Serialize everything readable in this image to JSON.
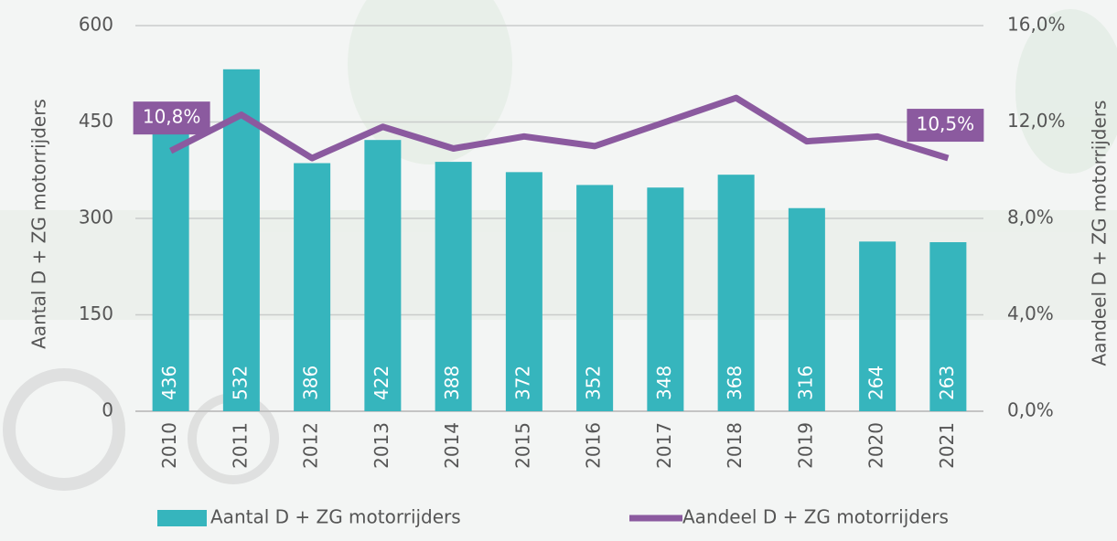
{
  "chart_data": {
    "type": "bar-line",
    "categories": [
      "2010",
      "2011",
      "2012",
      "2013",
      "2014",
      "2015",
      "2016",
      "2017",
      "2018",
      "2019",
      "2020",
      "2021"
    ],
    "y_label": "Aantal D + ZG motorrijders",
    "y2_label": "Aandeel D + ZG motorrijders",
    "ylim": [
      0,
      600
    ],
    "yticks": [
      0,
      150,
      300,
      450,
      600
    ],
    "y2lim": [
      0,
      16
    ],
    "y2ticks": [
      {
        "value": 0,
        "label": "0,0%"
      },
      {
        "value": 4,
        "label": "4,0%"
      },
      {
        "value": 8,
        "label": "8,0%"
      },
      {
        "value": 12,
        "label": "12,0%"
      },
      {
        "value": 16,
        "label": "16,0%"
      }
    ],
    "grid": true,
    "series": [
      {
        "name": "Aantal D + ZG motorrijders",
        "type": "bar",
        "color": "#36b5bd",
        "values": [
          436,
          532,
          386,
          422,
          388,
          372,
          352,
          348,
          368,
          316,
          264,
          263
        ]
      },
      {
        "name": "Aandeel D + ZG motorrijders",
        "type": "line",
        "axis": "y2",
        "color": "#8b5a9f",
        "values": [
          10.8,
          12.3,
          10.5,
          11.8,
          10.9,
          11.4,
          11.0,
          12.0,
          13.0,
          11.2,
          11.4,
          10.5
        ],
        "value_labels": [
          "10,8%",
          null,
          null,
          null,
          null,
          null,
          null,
          null,
          null,
          null,
          null,
          "10,5%"
        ]
      }
    ]
  }
}
